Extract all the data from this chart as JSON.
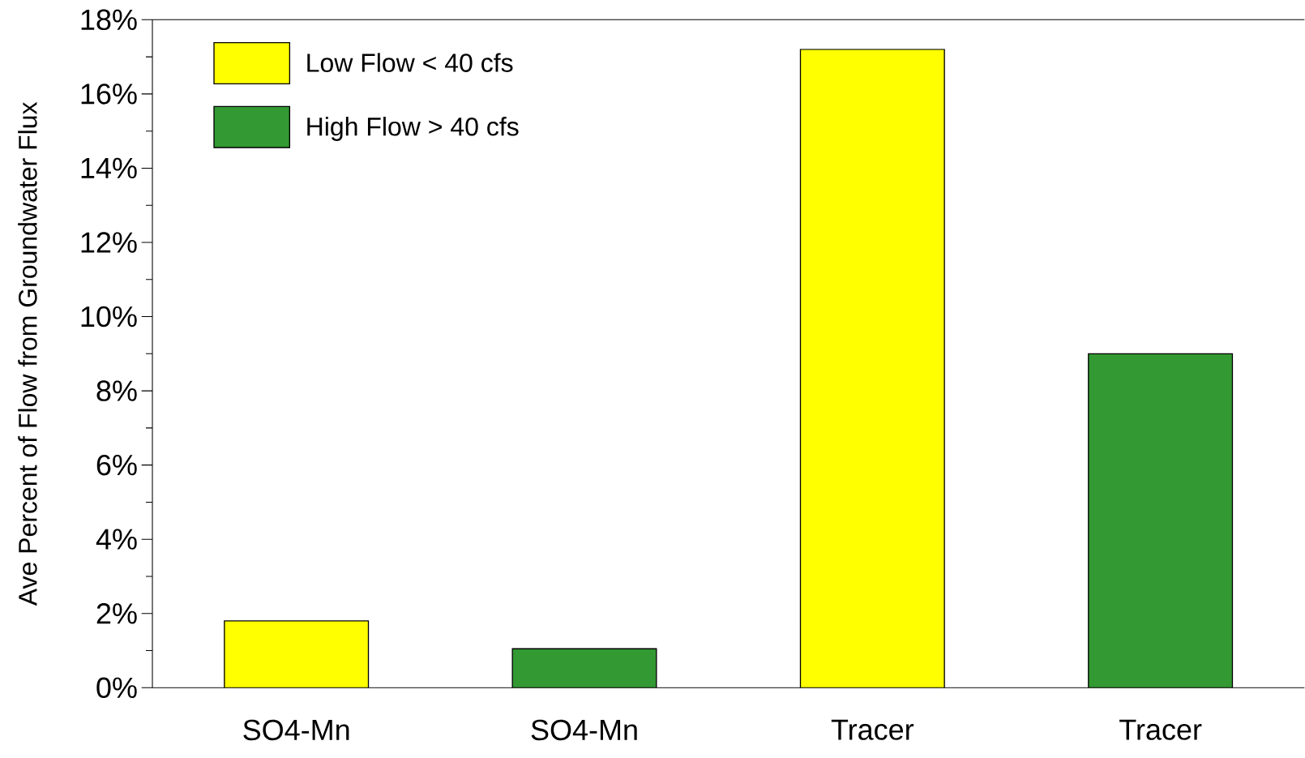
{
  "chart_data": {
    "type": "bar",
    "ylabel": "Ave Percent of Flow from Groundwater Flux",
    "categories": [
      "SO4-Mn",
      "SO4-Mn",
      "Tracer",
      "Tracer"
    ],
    "series": [
      {
        "name": "Low Flow < 40 cfs",
        "color": "#ffff00",
        "values": [
          1.8,
          null,
          17.2,
          null
        ]
      },
      {
        "name": "High Flow > 40 cfs",
        "color": "#339933",
        "values": [
          null,
          1.05,
          null,
          9.0
        ]
      }
    ],
    "ylim": [
      0,
      18
    ],
    "yticks": [
      {
        "value": 0,
        "label": "0%"
      },
      {
        "value": 2,
        "label": "2%"
      },
      {
        "value": 4,
        "label": "4%"
      },
      {
        "value": 6,
        "label": "6%"
      },
      {
        "value": 8,
        "label": "8%"
      },
      {
        "value": 10,
        "label": "10%"
      },
      {
        "value": 12,
        "label": "12%"
      },
      {
        "value": 14,
        "label": "14%"
      },
      {
        "value": 16,
        "label": "16%"
      },
      {
        "value": 18,
        "label": "18%"
      }
    ],
    "legend": "top left",
    "grid": false
  }
}
